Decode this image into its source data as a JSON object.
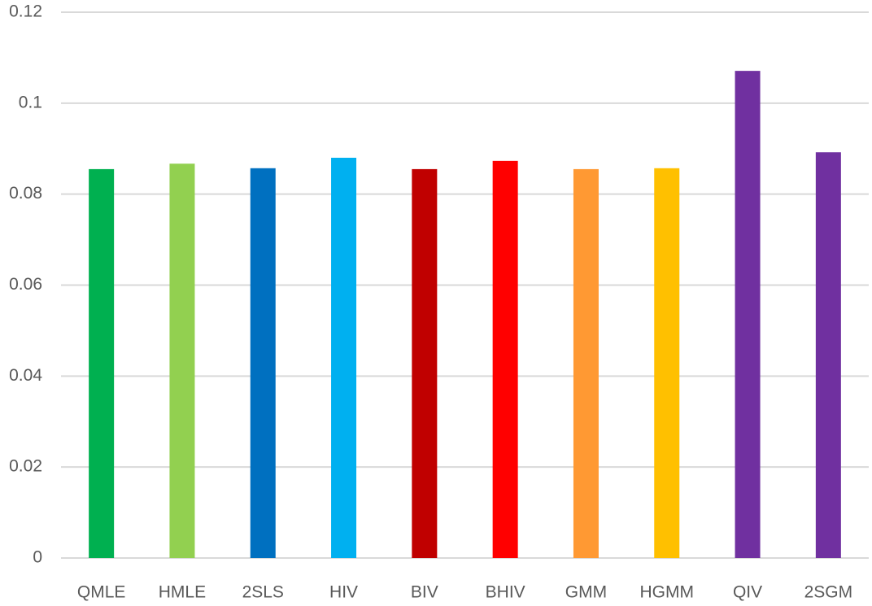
{
  "chart_data": {
    "type": "bar",
    "categories": [
      "QMLE",
      "HMLE",
      "2SLS",
      "HIV",
      "BIV",
      "BHIV",
      "GMM",
      "HGMM",
      "QIV",
      "2SGM"
    ],
    "values": [
      0.0855,
      0.0867,
      0.0857,
      0.088,
      0.0855,
      0.0873,
      0.0855,
      0.0857,
      0.1071,
      0.0892
    ],
    "colors": [
      "#00b050",
      "#92d050",
      "#0070c0",
      "#00b0f0",
      "#c00000",
      "#ff0000",
      "#ff9933",
      "#ffc000",
      "#7030a0",
      "#7030a0"
    ],
    "ylim": [
      0,
      0.12
    ],
    "yticks": [
      0,
      0.02,
      0.04,
      0.06,
      0.08,
      0.1,
      0.12
    ],
    "grid": true
  }
}
